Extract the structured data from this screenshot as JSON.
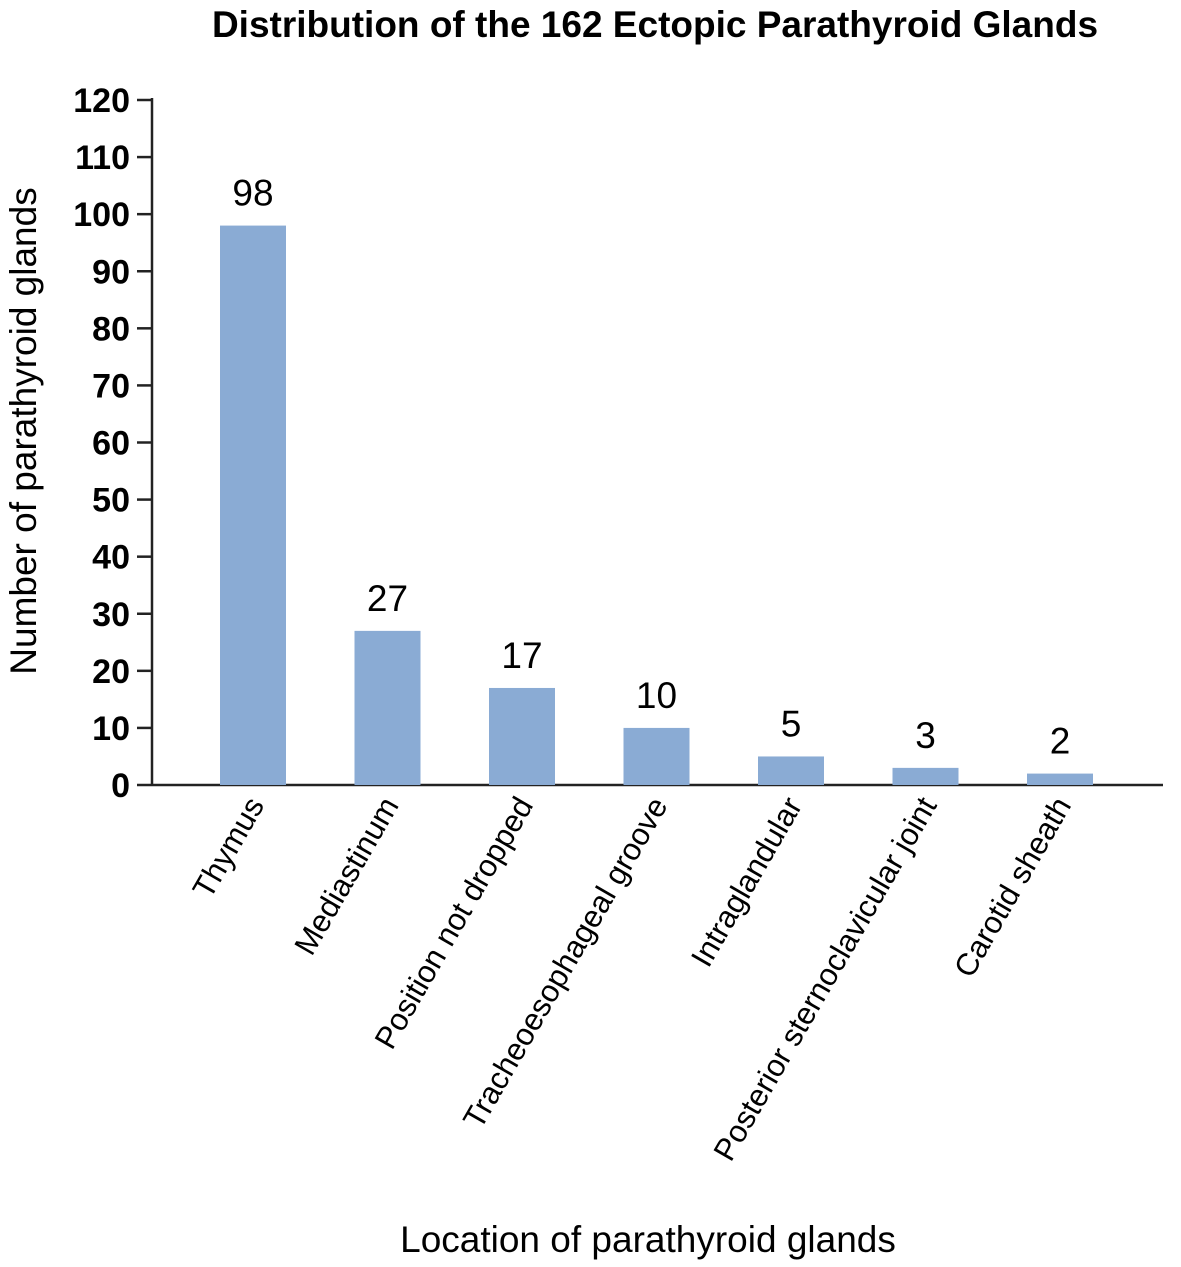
{
  "chart_data": {
    "type": "bar",
    "title": "Distribution of the 162 Ectopic Parathyroid Glands",
    "xlabel": "Location of  parathyroid glands",
    "ylabel": "Number of parathyroid glands",
    "categories": [
      "Thymus",
      "Mediastinum",
      "Position not dropped",
      "Tracheoesophageal groove",
      "Intraglandular",
      "Posterior sternoclavicular joint",
      "Carotid sheath"
    ],
    "values": [
      98,
      27,
      17,
      10,
      5,
      3,
      2
    ],
    "data_labels": [
      "98",
      "27",
      "17",
      "10",
      "5",
      "3",
      "2"
    ],
    "ylim": [
      0,
      120
    ],
    "yticks": [
      0,
      10,
      20,
      30,
      40,
      50,
      60,
      70,
      80,
      90,
      100,
      110,
      120
    ],
    "grid": false,
    "legend": "none",
    "bar_color": "#8aabd4"
  }
}
